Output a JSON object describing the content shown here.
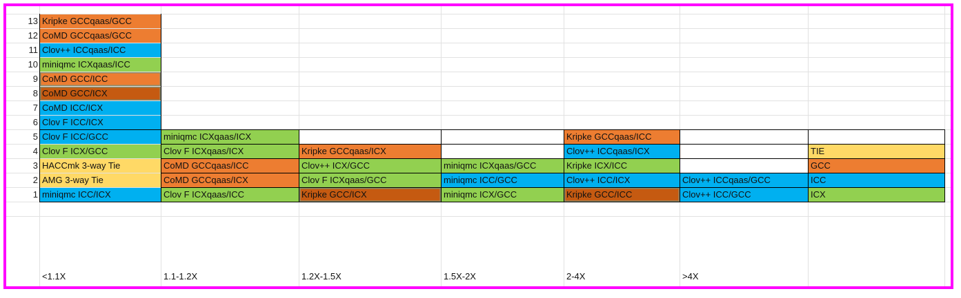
{
  "colors": {
    "orange": "#ed7d31",
    "blue": "#00b0f0",
    "green": "#92d050",
    "yellow": "#ffd966",
    "brown": "#c55a11",
    "white": "#ffffff",
    "frame": "#ff00ff"
  },
  "row_numbers": [
    "13",
    "12",
    "11",
    "10",
    "9",
    "8",
    "7",
    "6",
    "5",
    "4",
    "3",
    "2",
    "1"
  ],
  "bins": [
    "<1.1X",
    "1.1-1.2X",
    "1.2X-1.5X",
    "1.5X-2X",
    "2-4X",
    ">4X",
    ""
  ],
  "columns": [
    {
      "cells": [
        {
          "label": "Kripke GCCqaas/GCC",
          "color": "orange"
        },
        {
          "label": "CoMD GCCqaas/GCC",
          "color": "orange"
        },
        {
          "label": "Clov++ ICCqaas/ICC",
          "color": "blue"
        },
        {
          "label": "miniqmc ICXqaas/ICC",
          "color": "green"
        },
        {
          "label": "CoMD GCC/ICC",
          "color": "orange",
          "boxed": true
        },
        {
          "label": "CoMD GCC/ICX",
          "color": "brown",
          "boxed": true
        },
        {
          "label": "CoMD ICC/ICX",
          "color": "blue"
        },
        {
          "label": "Clov F ICC/ICX",
          "color": "blue"
        },
        {
          "label": "Clov F ICC/GCC",
          "color": "blue"
        },
        {
          "label": "Clov F ICX/GCC",
          "color": "green"
        },
        {
          "label": "HACCmk 3-way Tie",
          "color": "yellow"
        },
        {
          "label": "AMG 3-way Tie",
          "color": "yellow"
        },
        {
          "label": "miniqmc ICC/ICX",
          "color": "blue"
        }
      ]
    },
    {
      "cells": [
        {
          "label": "miniqmc ICXqaas/ICX",
          "color": "green"
        },
        {
          "label": "Clov F ICXqaas/ICX",
          "color": "green"
        },
        {
          "label": "CoMD GCCqaas/ICC",
          "color": "orange"
        },
        {
          "label": "CoMD GCCqaas/ICX",
          "color": "orange"
        },
        {
          "label": "Clov F ICXqaas/ICC",
          "color": "green"
        }
      ]
    },
    {
      "cells": [
        {
          "label": "",
          "color": "white"
        },
        {
          "label": "Kripke GCCqaas/ICX",
          "color": "orange"
        },
        {
          "label": "Clov++ ICX/GCC",
          "color": "green"
        },
        {
          "label": "Clov F ICXqaas/GCC",
          "color": "green"
        },
        {
          "label": "Kripke GCC/ICX",
          "color": "brown",
          "boxed": true
        }
      ]
    },
    {
      "cells": [
        {
          "label": "",
          "color": "white"
        },
        {
          "label": "",
          "color": "white"
        },
        {
          "label": "miniqmc ICXqaas/GCC",
          "color": "green"
        },
        {
          "label": "miniqmc ICC/GCC",
          "color": "blue"
        },
        {
          "label": "miniqmc ICX/GCC",
          "color": "green"
        }
      ]
    },
    {
      "cells": [
        {
          "label": "Kripke GCCqaas/ICC",
          "color": "orange"
        },
        {
          "label": "Clov++ ICCqaas/ICX",
          "color": "blue"
        },
        {
          "label": "Kripke ICX/ICC",
          "color": "green"
        },
        {
          "label": "Clov++ ICC/ICX",
          "color": "blue"
        },
        {
          "label": "Kripke GCC/ICC",
          "color": "brown",
          "boxed": true
        }
      ]
    },
    {
      "cells": [
        {
          "label": "",
          "color": "white"
        },
        {
          "label": "",
          "color": "white"
        },
        {
          "label": "",
          "color": "white"
        },
        {
          "label": "Clov++ ICCqaas/GCC",
          "color": "blue"
        },
        {
          "label": "Clov++ ICC/GCC",
          "color": "blue"
        }
      ]
    },
    {
      "cells": [
        {
          "label": "",
          "color": "white"
        },
        {
          "label": "TIE",
          "color": "yellow"
        },
        {
          "label": "GCC",
          "color": "orange"
        },
        {
          "label": "ICC",
          "color": "blue"
        },
        {
          "label": "ICX",
          "color": "green"
        }
      ]
    }
  ]
}
